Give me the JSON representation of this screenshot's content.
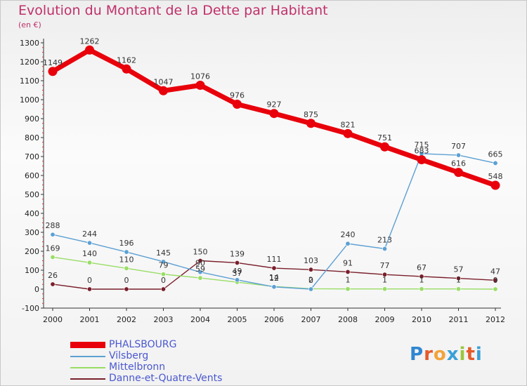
{
  "header": {
    "title": "Evolution du Montant de la Dette par Habitant",
    "subtitle": "(en €)"
  },
  "logo": {
    "text": "Proxiti"
  },
  "chart_data": {
    "type": "line",
    "title": "Evolution du Montant de la Dette par Habitant",
    "subtitle": "(en €)",
    "xlabel": "",
    "ylabel": "",
    "categories": [
      "2000",
      "2001",
      "2002",
      "2003",
      "2004",
      "2005",
      "2006",
      "2007",
      "2008",
      "2009",
      "2010",
      "2011",
      "2012"
    ],
    "ylim": [
      -100,
      1300
    ],
    "yticks": [
      -100,
      0,
      100,
      200,
      300,
      400,
      500,
      600,
      700,
      800,
      900,
      1000,
      1100,
      1200,
      1300
    ],
    "grid": false,
    "legend_position": "bottom-left",
    "series": [
      {
        "name": "PHALSBOURG",
        "color": "#e8000b",
        "width": "thick",
        "values": [
          1149,
          1262,
          1162,
          1047,
          1076,
          976,
          927,
          875,
          821,
          751,
          683,
          616,
          548
        ]
      },
      {
        "name": "Vilsberg",
        "color": "#5ca0d3",
        "width": "thin",
        "values": [
          288,
          244,
          196,
          145,
          90,
          49,
          12,
          0,
          240,
          213,
          715,
          707,
          665
        ]
      },
      {
        "name": "Mittelbronn",
        "color": "#99dd66",
        "width": "thin",
        "values": [
          169,
          140,
          110,
          79,
          59,
          37,
          14,
          2,
          1,
          1,
          1,
          1,
          0
        ]
      },
      {
        "name": "Danne-et-Quatre-Vents",
        "color": "#7a1f2b",
        "width": "thin",
        "values": [
          26,
          0,
          0,
          0,
          150,
          139,
          111,
          103,
          91,
          77,
          67,
          57,
          47
        ]
      }
    ]
  }
}
